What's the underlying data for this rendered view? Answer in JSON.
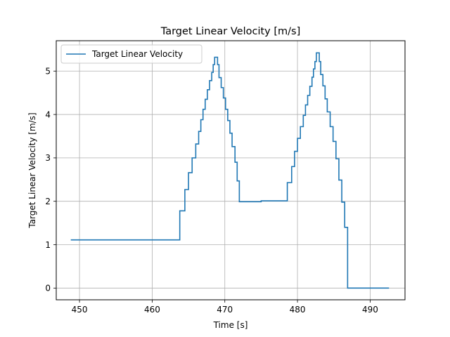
{
  "chart_data": {
    "type": "line",
    "title": "Target Linear Velocity [m/s]",
    "xlabel": "Time [s]",
    "ylabel": "Target Linear Velocity [m/s]",
    "xlim": [
      446.8,
      494.8
    ],
    "ylim": [
      -0.27,
      5.7
    ],
    "xticks": [
      450,
      460,
      470,
      480,
      490
    ],
    "yticks": [
      0,
      1,
      2,
      3,
      4,
      5
    ],
    "grid": true,
    "legend_position": "upper-left",
    "series": [
      {
        "name": "Target Linear Velocity",
        "color": "#1f77b4",
        "step": true,
        "points": [
          [
            448.8,
            1.11
          ],
          [
            463.8,
            1.11
          ],
          [
            463.8,
            1.78
          ],
          [
            464.5,
            1.78
          ],
          [
            464.5,
            2.27
          ],
          [
            465.0,
            2.27
          ],
          [
            465.0,
            2.66
          ],
          [
            465.5,
            2.66
          ],
          [
            465.5,
            3.0
          ],
          [
            466.0,
            3.0
          ],
          [
            466.0,
            3.32
          ],
          [
            466.4,
            3.32
          ],
          [
            466.4,
            3.61
          ],
          [
            466.7,
            3.61
          ],
          [
            466.7,
            3.88
          ],
          [
            467.0,
            3.88
          ],
          [
            467.0,
            4.12
          ],
          [
            467.3,
            4.12
          ],
          [
            467.3,
            4.35
          ],
          [
            467.6,
            4.35
          ],
          [
            467.6,
            4.57
          ],
          [
            467.9,
            4.57
          ],
          [
            467.9,
            4.78
          ],
          [
            468.2,
            4.78
          ],
          [
            468.2,
            4.97
          ],
          [
            468.4,
            4.97
          ],
          [
            468.4,
            5.15
          ],
          [
            468.6,
            5.15
          ],
          [
            468.6,
            5.32
          ],
          [
            469.0,
            5.32
          ],
          [
            469.0,
            5.15
          ],
          [
            469.2,
            5.15
          ],
          [
            469.2,
            4.85
          ],
          [
            469.5,
            4.85
          ],
          [
            469.5,
            4.62
          ],
          [
            469.8,
            4.62
          ],
          [
            469.8,
            4.38
          ],
          [
            470.1,
            4.38
          ],
          [
            470.1,
            4.12
          ],
          [
            470.4,
            4.12
          ],
          [
            470.4,
            3.86
          ],
          [
            470.7,
            3.86
          ],
          [
            470.7,
            3.57
          ],
          [
            471.0,
            3.57
          ],
          [
            471.0,
            3.26
          ],
          [
            471.4,
            3.26
          ],
          [
            471.4,
            2.9
          ],
          [
            471.7,
            2.9
          ],
          [
            471.7,
            2.47
          ],
          [
            472.0,
            2.47
          ],
          [
            472.0,
            1.99
          ],
          [
            475.0,
            1.99
          ],
          [
            475.0,
            2.01
          ],
          [
            478.6,
            2.01
          ],
          [
            478.6,
            2.43
          ],
          [
            479.2,
            2.43
          ],
          [
            479.2,
            2.8
          ],
          [
            479.6,
            2.8
          ],
          [
            479.6,
            3.15
          ],
          [
            480.0,
            3.15
          ],
          [
            480.0,
            3.45
          ],
          [
            480.4,
            3.45
          ],
          [
            480.4,
            3.72
          ],
          [
            480.8,
            3.72
          ],
          [
            480.8,
            3.98
          ],
          [
            481.1,
            3.98
          ],
          [
            481.1,
            4.22
          ],
          [
            481.4,
            4.22
          ],
          [
            481.4,
            4.44
          ],
          [
            481.7,
            4.44
          ],
          [
            481.7,
            4.65
          ],
          [
            482.0,
            4.65
          ],
          [
            482.0,
            4.86
          ],
          [
            482.2,
            4.86
          ],
          [
            482.2,
            5.05
          ],
          [
            482.4,
            5.05
          ],
          [
            482.4,
            5.22
          ],
          [
            482.6,
            5.22
          ],
          [
            482.6,
            5.42
          ],
          [
            483.0,
            5.42
          ],
          [
            483.0,
            5.22
          ],
          [
            483.2,
            5.22
          ],
          [
            483.2,
            4.92
          ],
          [
            483.5,
            4.92
          ],
          [
            483.5,
            4.66
          ],
          [
            483.8,
            4.66
          ],
          [
            483.8,
            4.36
          ],
          [
            484.1,
            4.36
          ],
          [
            484.1,
            4.06
          ],
          [
            484.5,
            4.06
          ],
          [
            484.5,
            3.72
          ],
          [
            484.9,
            3.72
          ],
          [
            484.9,
            3.38
          ],
          [
            485.3,
            3.38
          ],
          [
            485.3,
            2.98
          ],
          [
            485.7,
            2.98
          ],
          [
            485.7,
            2.49
          ],
          [
            486.1,
            2.49
          ],
          [
            486.1,
            1.98
          ],
          [
            486.5,
            1.98
          ],
          [
            486.5,
            1.4
          ],
          [
            486.9,
            1.4
          ],
          [
            486.9,
            0.0
          ],
          [
            492.6,
            0.0
          ]
        ]
      }
    ]
  }
}
